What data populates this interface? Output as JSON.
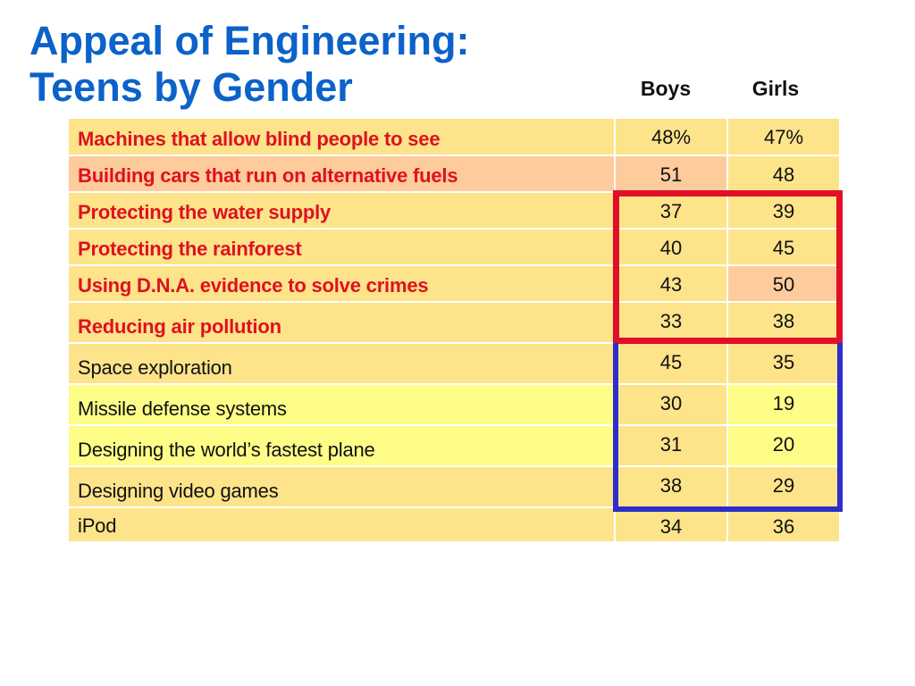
{
  "title": {
    "line1": "Appeal of Engineering:",
    "line2": "Teens by Gender"
  },
  "columns": {
    "boys": "Boys",
    "girls": "Girls"
  },
  "colors": {
    "title": "#0b62c9",
    "highlight_text": "#dd1122",
    "row_yellow": "#fde38a",
    "row_pale_yellow": "#fdfd88",
    "row_peach": "#fecb9c",
    "frame_red": "#e01028",
    "frame_blue": "#2d2dcc"
  },
  "rows": [
    {
      "label": "Machines that allow blind people to see",
      "boys": "48%",
      "girls": "47%",
      "highlighted": true,
      "label_bg": "#fde38a",
      "boys_bg": "#fde38a",
      "girls_bg": "#fde38a"
    },
    {
      "label": "Building cars that run on alternative fuels",
      "boys": "51",
      "girls": "48",
      "highlighted": true,
      "label_bg": "#fecb9c",
      "boys_bg": "#fecb9c",
      "girls_bg": "#fde38a"
    },
    {
      "label": "Protecting the water supply",
      "boys": "37",
      "girls": "39",
      "highlighted": true,
      "label_bg": "#fde38a",
      "boys_bg": "#fde38a",
      "girls_bg": "#fde38a"
    },
    {
      "label": "Protecting the rainforest",
      "boys": "40",
      "girls": "45",
      "highlighted": true,
      "label_bg": "#fde38a",
      "boys_bg": "#fde38a",
      "girls_bg": "#fde38a"
    },
    {
      "label": "Using D.N.A. evidence to solve crimes",
      "boys": "43",
      "girls": "50",
      "highlighted": true,
      "label_bg": "#fde38a",
      "boys_bg": "#fde38a",
      "girls_bg": "#fecb9c"
    },
    {
      "label": "Reducing air pollution",
      "boys": "33",
      "girls": "38",
      "highlighted": true,
      "label_bg": "#fde38a",
      "boys_bg": "#fde38a",
      "girls_bg": "#fde38a"
    },
    {
      "label": "Space exploration",
      "boys": "45",
      "girls": "35",
      "highlighted": false,
      "label_bg": "#fde38a",
      "boys_bg": "#fde38a",
      "girls_bg": "#fde38a"
    },
    {
      "label": "Missile defense systems",
      "boys": "30",
      "girls": "19",
      "highlighted": false,
      "label_bg": "#fdfd88",
      "boys_bg": "#fde38a",
      "girls_bg": "#fdfd88"
    },
    {
      "label": "Designing the world’s fastest plane",
      "boys": "31",
      "girls": "20",
      "highlighted": false,
      "label_bg": "#fdfd88",
      "boys_bg": "#fde38a",
      "girls_bg": "#fdfd88"
    },
    {
      "label": "Designing video games",
      "boys": "38",
      "girls": "29",
      "highlighted": false,
      "label_bg": "#fde38a",
      "boys_bg": "#fde38a",
      "girls_bg": "#fde38a"
    },
    {
      "label": "iPod",
      "boys": "34",
      "girls": "36",
      "highlighted": false,
      "label_bg": "#fde38a",
      "boys_bg": "#fde38a",
      "girls_bg": "#fde38a"
    }
  ]
}
